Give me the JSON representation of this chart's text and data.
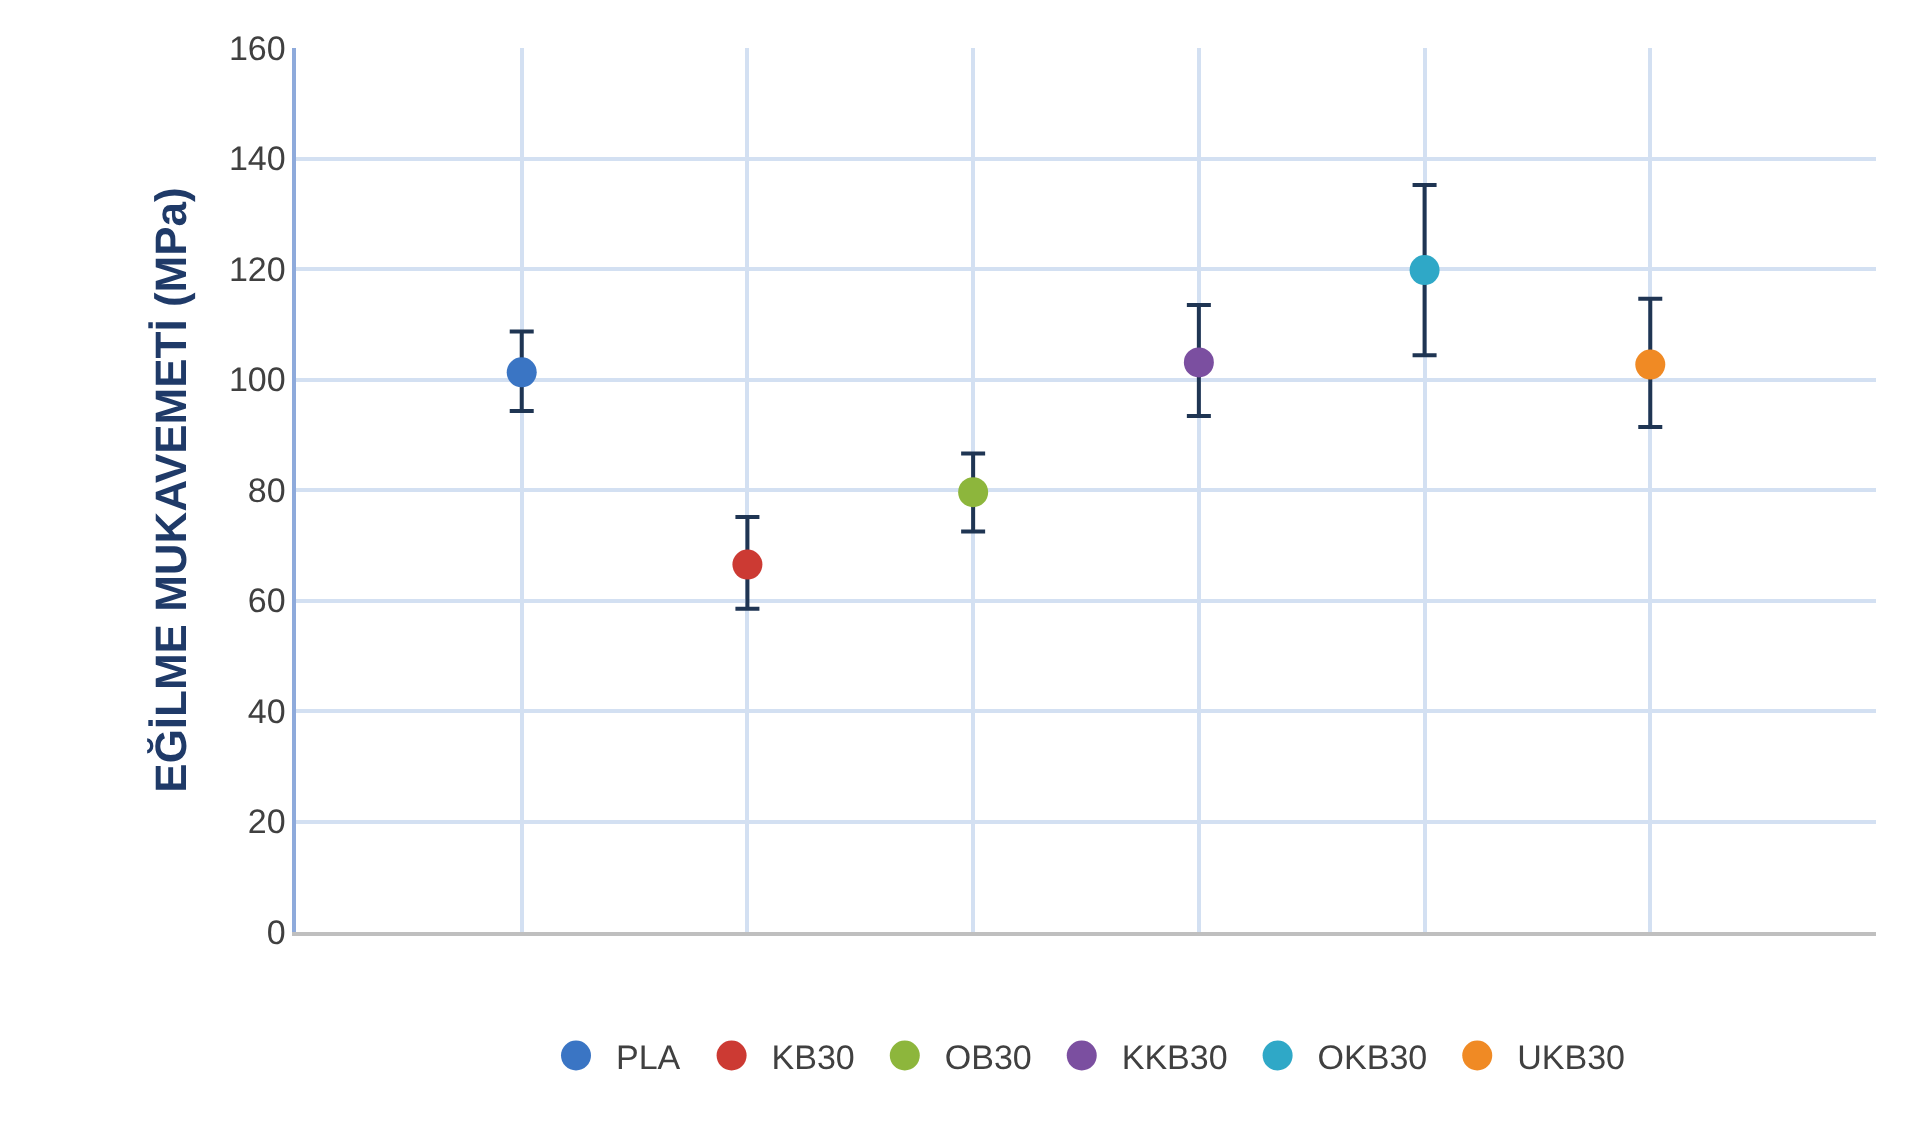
{
  "chart_data": {
    "type": "scatter",
    "ylabel": "EĞİLME MUKAVEMETİ (MPa)",
    "categories": [
      null,
      null,
      null,
      null,
      null,
      null
    ],
    "ylim": [
      0,
      160
    ],
    "yticks": [
      0,
      20,
      40,
      60,
      80,
      100,
      120,
      140,
      160
    ],
    "grid": true,
    "legend": "bottom",
    "marker": "circle",
    "tick_labels": "y",
    "series": [
      {
        "name": "PLA",
        "color": "#3a75c4",
        "values": [
          101.3,
          null,
          null,
          null,
          null,
          null
        ],
        "errors": [
          [
            94.3,
            108.7
          ],
          null,
          null,
          null,
          null,
          null
        ]
      },
      {
        "name": "KB30",
        "color": "#cc3a33",
        "values": [
          null,
          66.5,
          null,
          null,
          null,
          null
        ],
        "errors": [
          null,
          [
            58.5,
            75.1
          ],
          null,
          null,
          null,
          null
        ]
      },
      {
        "name": "OB30",
        "color": "#8db63c",
        "values": [
          null,
          null,
          79.6,
          null,
          null,
          null
        ],
        "errors": [
          null,
          null,
          [
            72.5,
            86.6
          ],
          null,
          null,
          null
        ]
      },
      {
        "name": "KKB30",
        "color": "#7b4fa0",
        "values": [
          null,
          null,
          null,
          103.1,
          null,
          null
        ],
        "errors": [
          null,
          null,
          null,
          [
            93.4,
            113.5
          ],
          null,
          null
        ]
      },
      {
        "name": "OKB30",
        "color": "#2fa8c7",
        "values": [
          null,
          null,
          null,
          null,
          119.8,
          null
        ],
        "errors": [
          null,
          null,
          null,
          null,
          [
            104.4,
            135.2
          ],
          null
        ]
      },
      {
        "name": "UKB30",
        "color": "#f08a24",
        "values": [
          null,
          null,
          null,
          null,
          null,
          102.7
        ],
        "errors": [
          null,
          null,
          null,
          null,
          null,
          [
            91.4,
            114.6
          ]
        ]
      }
    ]
  }
}
